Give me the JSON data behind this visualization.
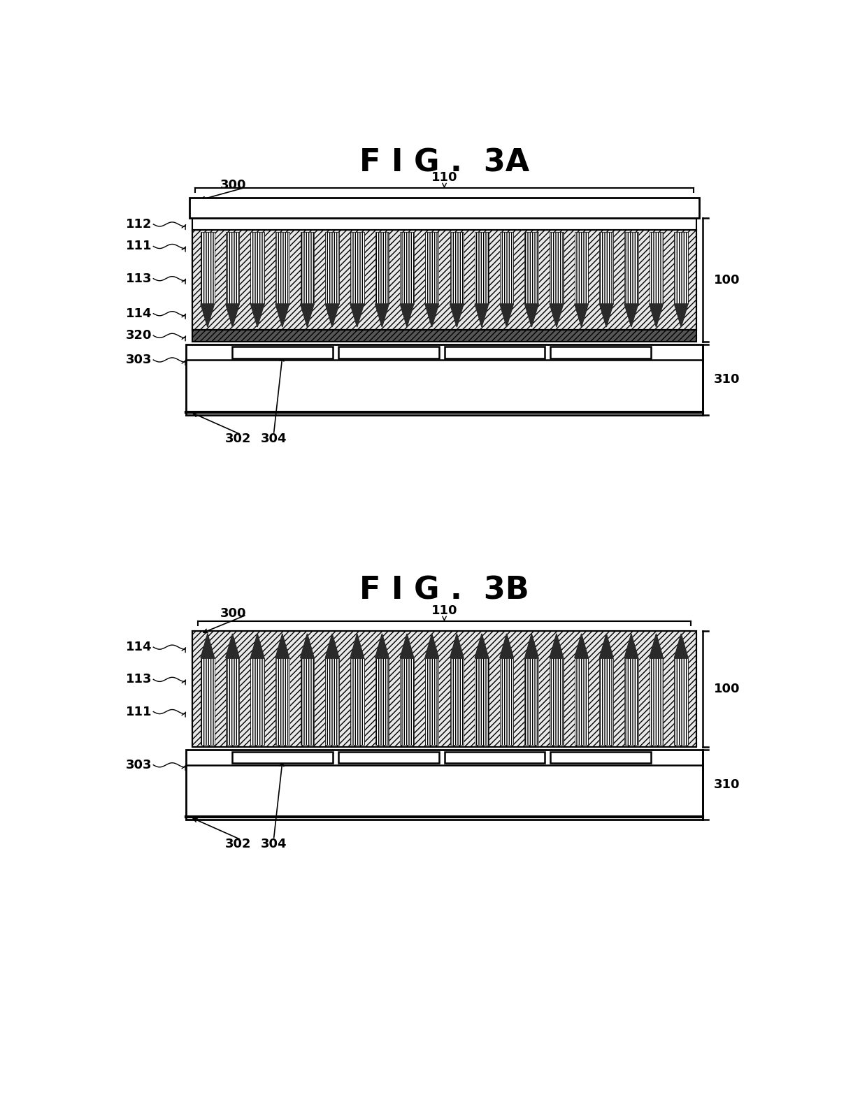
{
  "fig_title_3A": "F I G .  3A",
  "fig_title_3B": "F I G .  3B",
  "bg_color": "#ffffff",
  "line_color": "#000000",
  "n_cols": 20,
  "n_pix": 4
}
